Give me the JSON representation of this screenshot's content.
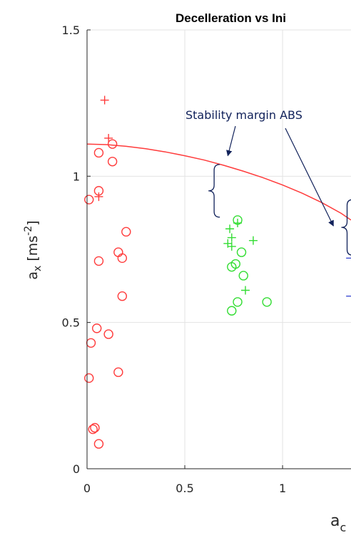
{
  "chart_data": {
    "type": "scatter",
    "title": "Decelleration vs Ini",
    "ylabel": "a",
    "ylabel_sub": "x",
    "ylabel_unit_open": " [ms",
    "ylabel_unit_exp": "-2",
    "ylabel_unit_close": "]",
    "xlabel": "a",
    "xlabel_sub": "c",
    "xlim": [
      0,
      1.35
    ],
    "ylim": [
      0,
      1.5
    ],
    "xticks": [
      0,
      0.5,
      1
    ],
    "xtick_labels": [
      "0",
      "0.5",
      "1"
    ],
    "yticks": [
      0,
      0.5,
      1,
      1.5
    ],
    "ytick_labels": [
      "0",
      "0.5",
      "1",
      "1.5"
    ],
    "grid": true,
    "annotation": "Stability margin ABS",
    "colors": {
      "red": "#ff3b3b",
      "green": "#33dd33",
      "blue": "#2233cc",
      "annotation": "#10215a",
      "grid": "#e3e3e3",
      "axis": "#262626"
    },
    "series": [
      {
        "marker": "circle",
        "color": "red",
        "points": [
          [
            0.01,
            0.92
          ],
          [
            0.06,
            1.08
          ],
          [
            0.13,
            1.11
          ],
          [
            0.13,
            1.05
          ],
          [
            0.06,
            0.95
          ],
          [
            0.2,
            0.81
          ],
          [
            0.16,
            0.74
          ],
          [
            0.18,
            0.72
          ],
          [
            0.06,
            0.71
          ],
          [
            0.18,
            0.59
          ],
          [
            0.05,
            0.48
          ],
          [
            0.11,
            0.46
          ],
          [
            0.02,
            0.43
          ],
          [
            0.01,
            0.31
          ],
          [
            0.16,
            0.33
          ],
          [
            0.04,
            0.14
          ],
          [
            0.03,
            0.135
          ],
          [
            0.06,
            0.085
          ]
        ]
      },
      {
        "marker": "plus",
        "color": "red",
        "points": [
          [
            0.09,
            1.26
          ],
          [
            0.11,
            1.13
          ],
          [
            0.06,
            0.93
          ]
        ]
      },
      {
        "marker": "circle",
        "color": "green",
        "points": [
          [
            0.77,
            0.85
          ],
          [
            0.79,
            0.74
          ],
          [
            0.76,
            0.7
          ],
          [
            0.74,
            0.69
          ],
          [
            0.8,
            0.66
          ],
          [
            0.77,
            0.57
          ],
          [
            0.92,
            0.57
          ],
          [
            0.74,
            0.54
          ]
        ]
      },
      {
        "marker": "plus",
        "color": "green",
        "points": [
          [
            0.73,
            0.82
          ],
          [
            0.74,
            0.79
          ],
          [
            0.72,
            0.77
          ],
          [
            0.74,
            0.76
          ],
          [
            0.85,
            0.78
          ],
          [
            0.81,
            0.61
          ],
          [
            0.77,
            0.84
          ]
        ]
      }
    ],
    "curve": {
      "color": "red",
      "x": [
        0,
        0.1,
        0.2,
        0.3,
        0.4,
        0.5,
        0.6,
        0.7,
        0.8,
        0.9,
        1.0,
        1.1,
        1.2,
        1.3,
        1.35
      ],
      "y": [
        1.11,
        1.108,
        1.102,
        1.094,
        1.083,
        1.07,
        1.055,
        1.037,
        1.017,
        0.995,
        0.97,
        0.942,
        0.91,
        0.873,
        0.85
      ]
    },
    "braces": [
      {
        "x": 0.65,
        "y0": 0.86,
        "y1": 1.04
      },
      {
        "x": 1.33,
        "y0": 0.73,
        "y1": 0.92
      }
    ],
    "blue_segments": [
      {
        "x0": 1.325,
        "x1": 1.35,
        "y": 0.72
      },
      {
        "x0": 1.325,
        "x1": 1.35,
        "y": 0.59
      }
    ],
    "annotation_arrows": [
      {
        "to_x": 0.72,
        "to_y": 1.07
      },
      {
        "to_x": 1.26,
        "to_y": 0.83
      }
    ]
  }
}
